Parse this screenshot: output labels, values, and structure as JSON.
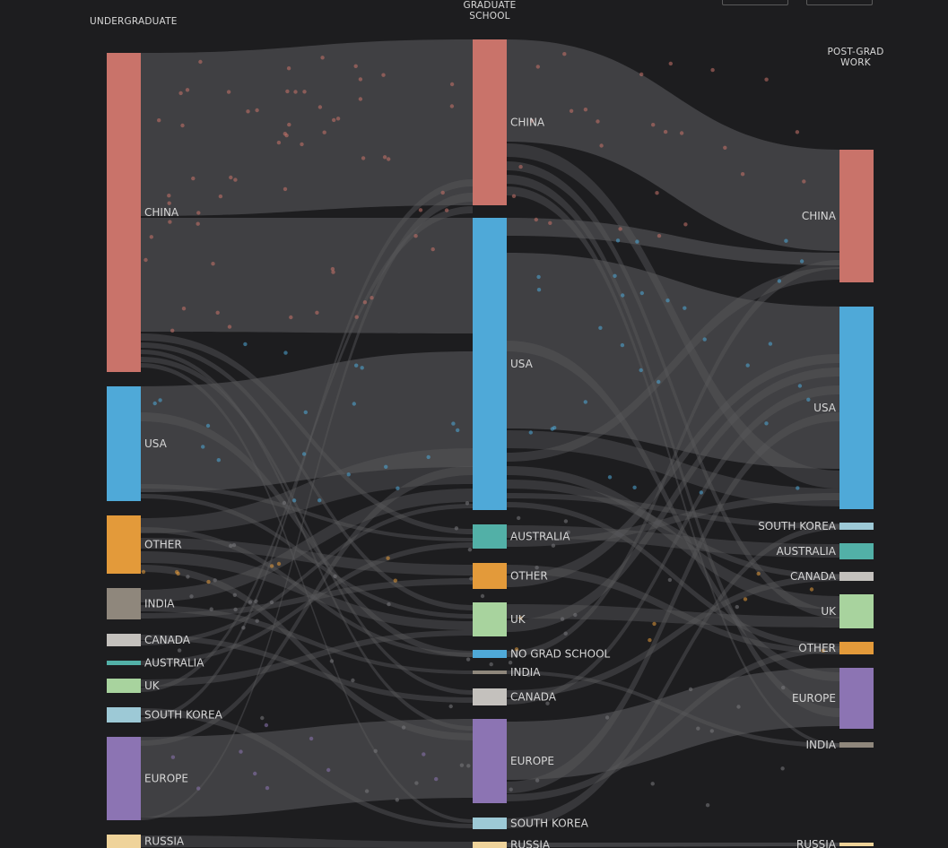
{
  "columns": {
    "undergraduate": "UNDERGRADUATE",
    "graduate_line1": "GRADUATE",
    "graduate_line2": "SCHOOL",
    "postgrad_line1": "POST-GRAD",
    "postgrad_line2": "WORK"
  },
  "colors": {
    "background": "#1d1d1f",
    "link": "#505054",
    "CHINA": "#c9736a",
    "USA": "#4fa9d8",
    "OTHER": "#e39a3a",
    "INDIA": "#8f877c",
    "CANADA": "#c4c1bd",
    "AUSTRALIA": "#52b0a7",
    "UK": "#a8d39e",
    "SOUTH KOREA": "#9dc9d6",
    "EUROPE": "#8c74b3",
    "RUSSIA": "#efd39a",
    "NO GRAD SCHOOL": "#4fa9d8"
  },
  "nodes": {
    "undergraduate": [
      {
        "label": "CHINA",
        "key": "CHINA"
      },
      {
        "label": "USA",
        "key": "USA"
      },
      {
        "label": "OTHER",
        "key": "OTHER"
      },
      {
        "label": "INDIA",
        "key": "INDIA"
      },
      {
        "label": "CANADA",
        "key": "CANADA"
      },
      {
        "label": "AUSTRALIA",
        "key": "AUSTRALIA"
      },
      {
        "label": "UK",
        "key": "UK"
      },
      {
        "label": "SOUTH KOREA",
        "key": "SOUTH KOREA"
      },
      {
        "label": "EUROPE",
        "key": "EUROPE"
      },
      {
        "label": "RUSSIA",
        "key": "RUSSIA"
      }
    ],
    "graduate": [
      {
        "label": "CHINA",
        "key": "CHINA"
      },
      {
        "label": "USA",
        "key": "USA"
      },
      {
        "label": "AUSTRALIA",
        "key": "AUSTRALIA"
      },
      {
        "label": "OTHER",
        "key": "OTHER"
      },
      {
        "label": "UK",
        "key": "UK"
      },
      {
        "label": "NO GRAD SCHOOL",
        "key": "NO GRAD SCHOOL"
      },
      {
        "label": "INDIA",
        "key": "INDIA"
      },
      {
        "label": "CANADA",
        "key": "CANADA"
      },
      {
        "label": "EUROPE",
        "key": "EUROPE"
      },
      {
        "label": "SOUTH KOREA",
        "key": "SOUTH KOREA"
      },
      {
        "label": "RUSSIA",
        "key": "RUSSIA"
      }
    ],
    "postgrad": [
      {
        "label": "CHINA",
        "key": "CHINA"
      },
      {
        "label": "USA",
        "key": "USA"
      },
      {
        "label": "SOUTH KOREA",
        "key": "SOUTH KOREA"
      },
      {
        "label": "AUSTRALIA",
        "key": "AUSTRALIA"
      },
      {
        "label": "CANADA",
        "key": "CANADA"
      },
      {
        "label": "UK",
        "key": "UK"
      },
      {
        "label": "OTHER",
        "key": "OTHER"
      },
      {
        "label": "EUROPE",
        "key": "EUROPE"
      },
      {
        "label": "INDIA",
        "key": "INDIA"
      },
      {
        "label": "RUSSIA",
        "key": "RUSSIA"
      }
    ]
  }
}
